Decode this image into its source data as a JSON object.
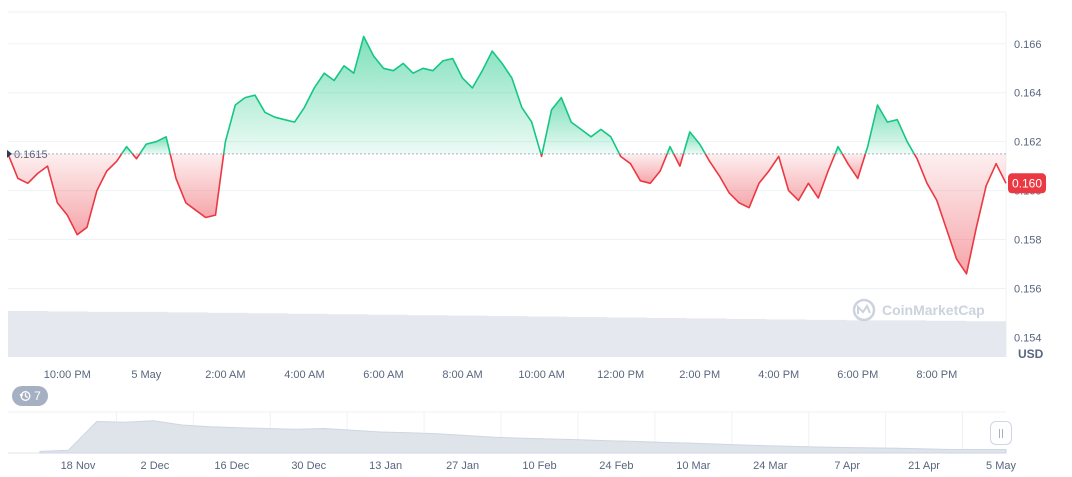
{
  "chart_data": {
    "type": "area",
    "currency": "USD",
    "reference_value": 0.1615,
    "reference_label": "0.1615",
    "current_value": 0.1603,
    "current_label": "0.160",
    "ylim": [
      0.1532,
      0.1673
    ],
    "y_ticks": [
      {
        "value": 0.154,
        "label": "0.154"
      },
      {
        "value": 0.156,
        "label": "0.156"
      },
      {
        "value": 0.158,
        "label": "0.158"
      },
      {
        "value": 0.16,
        "label": "0.160"
      },
      {
        "value": 0.162,
        "label": "0.162"
      },
      {
        "value": 0.164,
        "label": "0.164"
      },
      {
        "value": 0.166,
        "label": "0.166"
      }
    ],
    "x_start_hour": 20.5,
    "x_end_hour": 45.75,
    "x_ticks": [
      {
        "hour": 22,
        "label": "10:00 PM"
      },
      {
        "hour": 24,
        "label": "5 May"
      },
      {
        "hour": 26,
        "label": "2:00 AM"
      },
      {
        "hour": 28,
        "label": "4:00 AM"
      },
      {
        "hour": 30,
        "label": "6:00 AM"
      },
      {
        "hour": 32,
        "label": "8:00 AM"
      },
      {
        "hour": 34,
        "label": "10:00 AM"
      },
      {
        "hour": 36,
        "label": "12:00 PM"
      },
      {
        "hour": 38,
        "label": "2:00 PM"
      },
      {
        "hour": 40,
        "label": "4:00 PM"
      },
      {
        "hour": 42,
        "label": "6:00 PM"
      },
      {
        "hour": 44,
        "label": "8:00 PM"
      }
    ],
    "price_series": [
      [
        20.5,
        0.1615
      ],
      [
        20.75,
        0.1605
      ],
      [
        21.0,
        0.1603
      ],
      [
        21.25,
        0.1607
      ],
      [
        21.5,
        0.161
      ],
      [
        21.75,
        0.1595
      ],
      [
        22.0,
        0.159
      ],
      [
        22.25,
        0.1582
      ],
      [
        22.5,
        0.1585
      ],
      [
        22.75,
        0.16
      ],
      [
        23.0,
        0.1608
      ],
      [
        23.25,
        0.1612
      ],
      [
        23.5,
        0.1618
      ],
      [
        23.75,
        0.1613
      ],
      [
        24.0,
        0.1619
      ],
      [
        24.25,
        0.162
      ],
      [
        24.5,
        0.1622
      ],
      [
        24.75,
        0.1605
      ],
      [
        25.0,
        0.1595
      ],
      [
        25.25,
        0.1592
      ],
      [
        25.5,
        0.1589
      ],
      [
        25.75,
        0.159
      ],
      [
        26.0,
        0.162
      ],
      [
        26.25,
        0.1635
      ],
      [
        26.5,
        0.1638
      ],
      [
        26.75,
        0.1639
      ],
      [
        27.0,
        0.1632
      ],
      [
        27.25,
        0.163
      ],
      [
        27.5,
        0.1629
      ],
      [
        27.75,
        0.1628
      ],
      [
        28.0,
        0.1634
      ],
      [
        28.25,
        0.1642
      ],
      [
        28.5,
        0.1648
      ],
      [
        28.75,
        0.1645
      ],
      [
        29.0,
        0.1651
      ],
      [
        29.25,
        0.1648
      ],
      [
        29.5,
        0.1663
      ],
      [
        29.75,
        0.1655
      ],
      [
        30.0,
        0.165
      ],
      [
        30.25,
        0.1649
      ],
      [
        30.5,
        0.1652
      ],
      [
        30.75,
        0.1648
      ],
      [
        31.0,
        0.165
      ],
      [
        31.25,
        0.1649
      ],
      [
        31.5,
        0.1653
      ],
      [
        31.75,
        0.1654
      ],
      [
        32.0,
        0.1646
      ],
      [
        32.25,
        0.1642
      ],
      [
        32.5,
        0.1649
      ],
      [
        32.75,
        0.1657
      ],
      [
        33.0,
        0.1652
      ],
      [
        33.25,
        0.1646
      ],
      [
        33.5,
        0.1634
      ],
      [
        33.75,
        0.1628
      ],
      [
        34.0,
        0.1614
      ],
      [
        34.25,
        0.1633
      ],
      [
        34.5,
        0.1638
      ],
      [
        34.75,
        0.1628
      ],
      [
        35.0,
        0.1625
      ],
      [
        35.25,
        0.1622
      ],
      [
        35.5,
        0.1625
      ],
      [
        35.75,
        0.1622
      ],
      [
        36.0,
        0.1614
      ],
      [
        36.25,
        0.1611
      ],
      [
        36.5,
        0.1604
      ],
      [
        36.75,
        0.1603
      ],
      [
        37.0,
        0.1608
      ],
      [
        37.25,
        0.1618
      ],
      [
        37.5,
        0.161
      ],
      [
        37.75,
        0.1624
      ],
      [
        38.0,
        0.1619
      ],
      [
        38.25,
        0.1612
      ],
      [
        38.5,
        0.1606
      ],
      [
        38.75,
        0.1599
      ],
      [
        39.0,
        0.1595
      ],
      [
        39.25,
        0.1593
      ],
      [
        39.5,
        0.1603
      ],
      [
        39.75,
        0.1608
      ],
      [
        40.0,
        0.1614
      ],
      [
        40.25,
        0.16
      ],
      [
        40.5,
        0.1596
      ],
      [
        40.75,
        0.1603
      ],
      [
        41.0,
        0.1597
      ],
      [
        41.25,
        0.1608
      ],
      [
        41.5,
        0.1618
      ],
      [
        41.75,
        0.1611
      ],
      [
        42.0,
        0.1605
      ],
      [
        42.25,
        0.1618
      ],
      [
        42.5,
        0.1635
      ],
      [
        42.75,
        0.1628
      ],
      [
        43.0,
        0.1629
      ],
      [
        43.25,
        0.162
      ],
      [
        43.5,
        0.1613
      ],
      [
        43.75,
        0.1603
      ],
      [
        44.0,
        0.1596
      ],
      [
        44.25,
        0.1584
      ],
      [
        44.5,
        0.1572
      ],
      [
        44.75,
        0.1566
      ],
      [
        45.0,
        0.1585
      ],
      [
        45.25,
        0.1602
      ],
      [
        45.5,
        0.1611
      ],
      [
        45.75,
        0.1603
      ]
    ],
    "volume_relative": [
      0.98,
      0.97,
      0.96,
      0.96,
      0.95,
      0.94,
      0.93,
      0.92,
      0.91,
      0.9,
      0.89,
      0.88,
      0.87,
      0.86,
      0.85,
      0.84,
      0.83,
      0.82,
      0.81,
      0.8,
      0.79,
      0.78,
      0.78,
      0.77,
      0.76
    ],
    "navigator": {
      "labels": [
        "18 Nov",
        "2 Dec",
        "16 Dec",
        "30 Dec",
        "13 Jan",
        "27 Jan",
        "10 Feb",
        "24 Feb",
        "10 Mar",
        "24 Mar",
        "7 Apr",
        "21 Apr",
        "5 May"
      ],
      "series": [
        0.05,
        0.08,
        0.9,
        0.88,
        0.92,
        0.8,
        0.75,
        0.72,
        0.7,
        0.68,
        0.7,
        0.65,
        0.6,
        0.58,
        0.55,
        0.5,
        0.45,
        0.42,
        0.4,
        0.38,
        0.35,
        0.33,
        0.3,
        0.28,
        0.25,
        0.22,
        0.2,
        0.18,
        0.16,
        0.15,
        0.14,
        0.12,
        0.1,
        0.1,
        0.1
      ]
    }
  },
  "watermark": {
    "text": "CoinMarketCap"
  },
  "currency_label": "USD",
  "history_badge": {
    "count": "7",
    "icon": "history-icon"
  },
  "colors": {
    "up": "#16c784",
    "down": "#ea3943",
    "current_badge": "#ea3943",
    "grid": "#eff2f5",
    "axis_text": "#58667e",
    "volume": "#e5e8ef",
    "navigator": "#dfe3ea"
  }
}
